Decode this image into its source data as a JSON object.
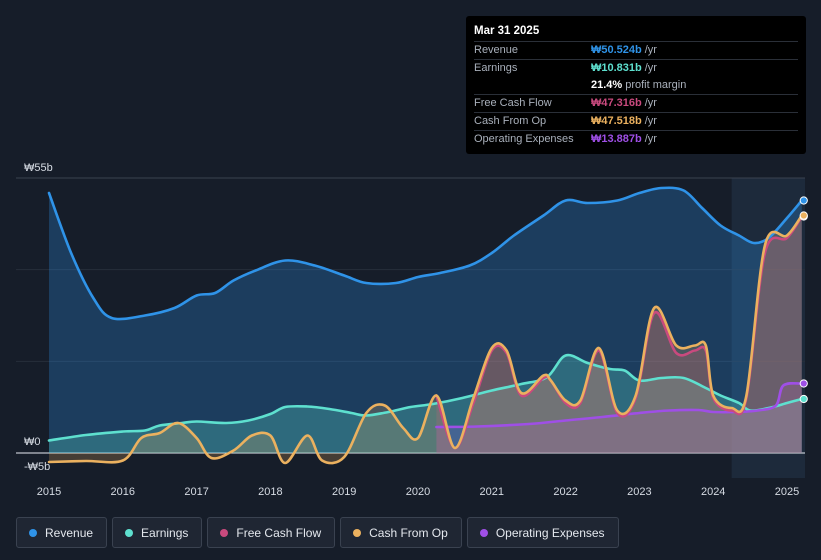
{
  "chart_data": {
    "type": "line",
    "title": "",
    "y_top_label": "₩55b",
    "y_zero_label": "₩0",
    "y_bottom_label": "-₩5b",
    "ylim": [
      -5,
      55
    ],
    "xlim": [
      2014.9,
      2025.25
    ],
    "x_ticks": [
      "2015",
      "2016",
      "2017",
      "2018",
      "2019",
      "2020",
      "2021",
      "2022",
      "2023",
      "2024",
      "2025"
    ],
    "forecast_start": 2024.25,
    "series": [
      {
        "name": "Revenue",
        "color": "#2f93e8",
        "points": [
          [
            2015,
            52
          ],
          [
            2015.3,
            40
          ],
          [
            2015.6,
            31
          ],
          [
            2015.85,
            27
          ],
          [
            2016.3,
            27.5
          ],
          [
            2016.7,
            29
          ],
          [
            2017,
            31.5
          ],
          [
            2017.25,
            32
          ],
          [
            2017.5,
            34.5
          ],
          [
            2017.8,
            36.5
          ],
          [
            2018.2,
            38.5
          ],
          [
            2018.6,
            37.5
          ],
          [
            2019.0,
            35.5
          ],
          [
            2019.3,
            34
          ],
          [
            2019.7,
            34
          ],
          [
            2020,
            35.2
          ],
          [
            2020.3,
            36
          ],
          [
            2020.7,
            37.5
          ],
          [
            2021,
            40
          ],
          [
            2021.3,
            43.5
          ],
          [
            2021.7,
            47.5
          ],
          [
            2022,
            50.5
          ],
          [
            2022.3,
            50
          ],
          [
            2022.7,
            50.5
          ],
          [
            2023,
            52
          ],
          [
            2023.3,
            53
          ],
          [
            2023.6,
            52.5
          ],
          [
            2023.85,
            49
          ],
          [
            2024.1,
            45.5
          ],
          [
            2024.35,
            43.5
          ],
          [
            2024.55,
            42
          ],
          [
            2024.75,
            43
          ],
          [
            2025,
            47
          ],
          [
            2025.2,
            50.5
          ]
        ]
      },
      {
        "name": "Earnings",
        "color": "#5ee0cf",
        "points": [
          [
            2015,
            2.5
          ],
          [
            2015.5,
            3.6
          ],
          [
            2016,
            4.3
          ],
          [
            2016.3,
            4.5
          ],
          [
            2016.5,
            5.5
          ],
          [
            2016.8,
            6
          ],
          [
            2017,
            6.3
          ],
          [
            2017.4,
            6
          ],
          [
            2017.7,
            6.5
          ],
          [
            2018,
            7.8
          ],
          [
            2018.2,
            9.2
          ],
          [
            2018.5,
            9.3
          ],
          [
            2018.8,
            8.8
          ],
          [
            2019.1,
            8
          ],
          [
            2019.3,
            7.5
          ],
          [
            2019.6,
            8.2
          ],
          [
            2019.9,
            9.2
          ],
          [
            2020.2,
            9.8
          ],
          [
            2020.6,
            11
          ],
          [
            2021,
            12.5
          ],
          [
            2021.4,
            13.8
          ],
          [
            2021.75,
            15.2
          ],
          [
            2022,
            19.5
          ],
          [
            2022.3,
            18
          ],
          [
            2022.6,
            16.8
          ],
          [
            2022.8,
            16.5
          ],
          [
            2023,
            14.5
          ],
          [
            2023.3,
            15
          ],
          [
            2023.6,
            15
          ],
          [
            2023.9,
            13
          ],
          [
            2024.1,
            11.5
          ],
          [
            2024.35,
            10
          ],
          [
            2024.5,
            8.5
          ],
          [
            2024.75,
            9
          ],
          [
            2025,
            10
          ],
          [
            2025.2,
            10.8
          ]
        ]
      },
      {
        "name": "Free Cash Flow",
        "color": "#c94a7e",
        "start": 2020.25,
        "points": [
          [
            2020.25,
            11.5
          ],
          [
            2020.5,
            1
          ],
          [
            2020.75,
            10
          ],
          [
            2021,
            20.5
          ],
          [
            2021.2,
            20
          ],
          [
            2021.4,
            11.5
          ],
          [
            2021.7,
            15
          ],
          [
            2021.8,
            14.5
          ],
          [
            2022,
            10
          ],
          [
            2022.2,
            10
          ],
          [
            2022.45,
            20.5
          ],
          [
            2022.7,
            8
          ],
          [
            2022.95,
            11
          ],
          [
            2023.2,
            28
          ],
          [
            2023.5,
            20
          ],
          [
            2023.75,
            20.5
          ],
          [
            2023.9,
            20.5
          ],
          [
            2024,
            11
          ],
          [
            2024.25,
            8.5
          ],
          [
            2024.45,
            11
          ],
          [
            2024.7,
            40
          ],
          [
            2025,
            43
          ],
          [
            2025.2,
            47.3
          ]
        ]
      },
      {
        "name": "Cash From Op",
        "color": "#ebb15f",
        "points": [
          [
            2015,
            -1.8
          ],
          [
            2015.5,
            -1.6
          ],
          [
            2016,
            -1.5
          ],
          [
            2016.25,
            3
          ],
          [
            2016.5,
            4
          ],
          [
            2016.75,
            6
          ],
          [
            2017,
            3
          ],
          [
            2017.2,
            -1
          ],
          [
            2017.5,
            0.5
          ],
          [
            2017.75,
            3.5
          ],
          [
            2018,
            3.5
          ],
          [
            2018.2,
            -2
          ],
          [
            2018.5,
            3.5
          ],
          [
            2018.7,
            -1.5
          ],
          [
            2019,
            -0.8
          ],
          [
            2019.3,
            8
          ],
          [
            2019.55,
            9.5
          ],
          [
            2019.8,
            5
          ],
          [
            2020,
            3
          ],
          [
            2020.25,
            11.5
          ],
          [
            2020.5,
            1
          ],
          [
            2020.75,
            11
          ],
          [
            2021,
            21
          ],
          [
            2021.2,
            20.5
          ],
          [
            2021.4,
            12
          ],
          [
            2021.7,
            15.5
          ],
          [
            2021.8,
            14.5
          ],
          [
            2022,
            10.5
          ],
          [
            2022.2,
            10.5
          ],
          [
            2022.45,
            21
          ],
          [
            2022.7,
            8.5
          ],
          [
            2022.95,
            11.5
          ],
          [
            2023.2,
            29
          ],
          [
            2023.5,
            21.5
          ],
          [
            2023.75,
            21.5
          ],
          [
            2023.9,
            21.5
          ],
          [
            2024,
            11.5
          ],
          [
            2024.25,
            9
          ],
          [
            2024.45,
            11.5
          ],
          [
            2024.7,
            41.5
          ],
          [
            2025,
            43.5
          ],
          [
            2025.2,
            47.5
          ]
        ]
      },
      {
        "name": "Operating Expenses",
        "color": "#9f4fe6",
        "start": 2020.25,
        "points": [
          [
            2020.25,
            5.2
          ],
          [
            2020.8,
            5.3
          ],
          [
            2021.5,
            5.8
          ],
          [
            2022,
            6.5
          ],
          [
            2022.5,
            7.2
          ],
          [
            2023,
            8
          ],
          [
            2023.4,
            8.5
          ],
          [
            2023.8,
            8.6
          ],
          [
            2024,
            8.2
          ],
          [
            2024.3,
            8.2
          ],
          [
            2024.6,
            8.5
          ],
          [
            2024.85,
            9.5
          ],
          [
            2024.95,
            13.5
          ],
          [
            2025.2,
            13.9
          ]
        ]
      }
    ]
  },
  "tooltip": {
    "date": "Mar 31 2025",
    "rows": [
      {
        "label": "Revenue",
        "value": "₩50.524b",
        "unit": "/yr",
        "color": "#2f93e8"
      },
      {
        "label": "Earnings",
        "value": "₩10.831b",
        "unit": "/yr",
        "color": "#5ee0cf"
      },
      {
        "label": "",
        "value": "21.4%",
        "unit": "profit margin",
        "color": "#ffffff"
      },
      {
        "label": "Free Cash Flow",
        "value": "₩47.316b",
        "unit": "/yr",
        "color": "#c94a7e"
      },
      {
        "label": "Cash From Op",
        "value": "₩47.518b",
        "unit": "/yr",
        "color": "#ebb15f"
      },
      {
        "label": "Operating Expenses",
        "value": "₩13.887b",
        "unit": "/yr",
        "color": "#9f4fe6"
      }
    ]
  },
  "legend": [
    {
      "label": "Revenue",
      "color": "#2f93e8"
    },
    {
      "label": "Earnings",
      "color": "#5ee0cf"
    },
    {
      "label": "Free Cash Flow",
      "color": "#c94a7e"
    },
    {
      "label": "Cash From Op",
      "color": "#ebb15f"
    },
    {
      "label": "Operating Expenses",
      "color": "#9f4fe6"
    }
  ]
}
